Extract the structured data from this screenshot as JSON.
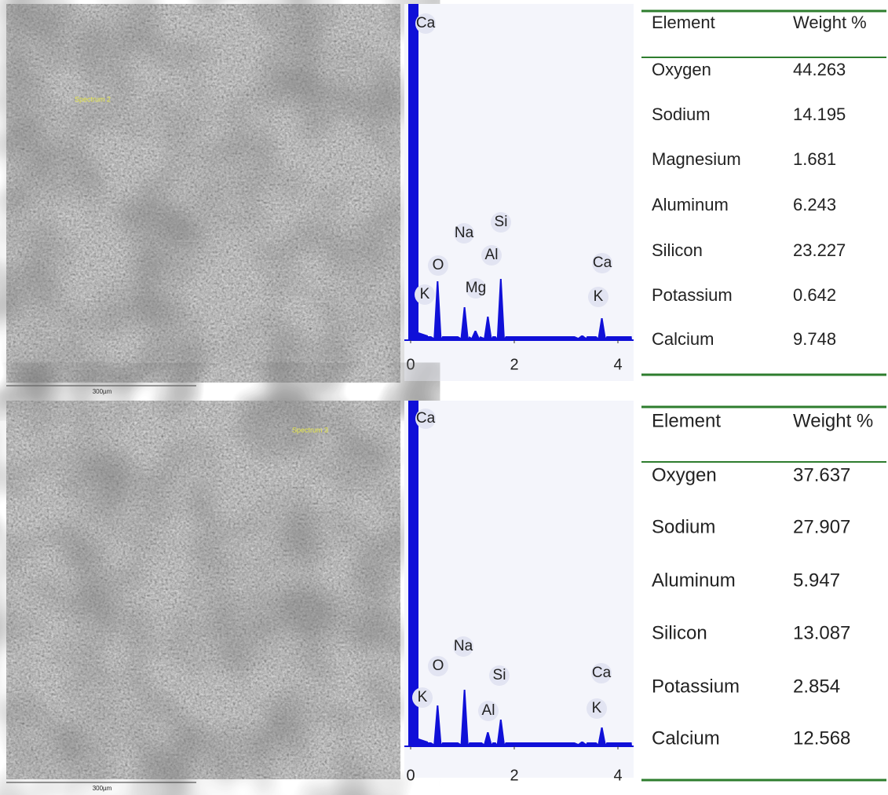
{
  "panels": [
    {
      "spectrum_label": "Spectrum 2",
      "scale_bar": "300µm",
      "spectrum": {
        "peaks": [
          "Ca",
          "O",
          "Na",
          "Si",
          "Al",
          "Mg",
          "K",
          "Ca",
          "K"
        ],
        "xticks": [
          0,
          2,
          4
        ]
      },
      "table": {
        "header": [
          "Element",
          "Weight %"
        ],
        "rows": [
          [
            "Oxygen",
            "44.263"
          ],
          [
            "Sodium",
            "14.195"
          ],
          [
            "Magnesium",
            "1.681"
          ],
          [
            "Aluminum",
            "6.243"
          ],
          [
            "Silicon",
            "23.227"
          ],
          [
            "Potassium",
            "0.642"
          ],
          [
            "Calcium",
            "9.748"
          ]
        ]
      }
    },
    {
      "spectrum_label": "Spectrum 3",
      "scale_bar": "300µm",
      "spectrum": {
        "peaks": [
          "Ca",
          "O",
          "Na",
          "Si",
          "Al",
          "K",
          "Ca",
          "K"
        ],
        "xticks": [
          0,
          2,
          4
        ]
      },
      "table": {
        "header": [
          "Element",
          "Weight %"
        ],
        "rows": [
          [
            "Oxygen",
            "37.637"
          ],
          [
            "Sodium",
            "27.907"
          ],
          [
            "Aluminum",
            "5.947"
          ],
          [
            "Silicon",
            "13.087"
          ],
          [
            "Potassium",
            "2.854"
          ],
          [
            "Calcium",
            "12.568"
          ]
        ]
      }
    }
  ]
}
